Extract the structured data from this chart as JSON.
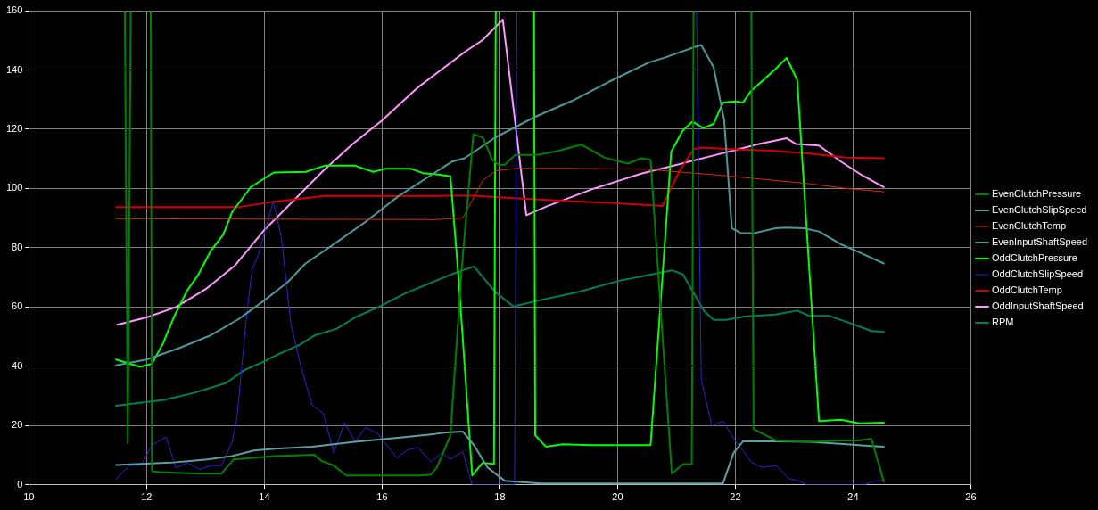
{
  "chart_data": {
    "type": "line",
    "xlim": [
      10,
      26
    ],
    "xticks": [
      10,
      12,
      14,
      16,
      18,
      20,
      22,
      24,
      26
    ],
    "ylim": [
      0,
      160
    ],
    "yticks": [
      0,
      20,
      40,
      60,
      80,
      100,
      120,
      140,
      160
    ],
    "grid": true,
    "legend": "right",
    "marker": "none",
    "line_style": "solid",
    "series": [
      {
        "name": "EvenClutchPressure",
        "color": "#008000",
        "x": [
          11.63,
          11.68,
          11.73,
          11.9,
          12.07,
          12.09,
          12.22,
          12.88,
          13.27,
          13.48,
          14.18,
          14.84,
          14.97,
          15.18,
          15.39,
          16.06,
          16.62,
          16.83,
          16.93,
          17.16,
          17.35,
          17.55,
          17.71,
          17.87,
          17.98,
          18.08,
          18.26,
          18.63,
          18.97,
          19.38,
          19.78,
          20.17,
          20.4,
          20.56,
          20.92,
          21.11,
          21.26,
          21.29,
          21.8,
          22.27,
          22.31,
          22.69,
          23.26,
          23.79,
          24.1,
          24.31,
          24.52
        ],
        "values": [
          160,
          14,
          160,
          null,
          160,
          4.6,
          4.3,
          3.8,
          3.8,
          8.6,
          9.7,
          10.2,
          8.1,
          6.5,
          3.2,
          3.2,
          3.2,
          3.5,
          5.9,
          16.7,
          72.6,
          118.3,
          117.2,
          109.7,
          108,
          108,
          111.3,
          111.3,
          112.6,
          114.8,
          110.4,
          108.4,
          110.2,
          109.7,
          3.8,
          7,
          7,
          160,
          null,
          160,
          18.8,
          15,
          14.5,
          15,
          15,
          15.6,
          1.1
        ]
      },
      {
        "name": "EvenClutchSlipSpeed",
        "color": "#5f9ea0",
        "x": [
          11.48,
          12.41,
          13.03,
          13.45,
          13.82,
          14.18,
          14.81,
          15.54,
          16.38,
          16.9,
          17.09,
          17.37,
          17.56,
          17.79,
          18.08,
          18.7,
          20.01,
          20.79,
          21.79,
          21.97,
          22.13,
          22.68,
          23.26,
          23.89,
          24.31,
          24.52
        ],
        "values": [
          6.7,
          7.5,
          8.6,
          9.7,
          11.6,
          12.2,
          12.9,
          14.5,
          16.1,
          17.2,
          17.7,
          18,
          13.4,
          5.9,
          1.4,
          0.5,
          0.5,
          0.5,
          0.5,
          10.8,
          14.7,
          14.7,
          14.5,
          13.7,
          13.1,
          12.9
        ]
      },
      {
        "name": "EvenClutchTemp",
        "color": "#cc3300",
        "x": [
          11.48,
          16.9,
          17.37,
          17.71,
          17.92,
          18.29,
          19.23,
          20.48,
          21.84,
          22.68,
          23.26,
          23.89,
          24.52
        ],
        "values": [
          89.8,
          89.5,
          90,
          102.7,
          105.9,
          106.8,
          106.8,
          106.5,
          104.3,
          102.7,
          101.6,
          100,
          98.9
        ]
      },
      {
        "name": "EvenInputShaftSpeed",
        "color": "#4f9696",
        "x": [
          11.48,
          12,
          12.56,
          13.09,
          13.56,
          13.97,
          14.39,
          14.7,
          15.18,
          15.75,
          16.27,
          16.9,
          17.19,
          17.4,
          17.92,
          18.6,
          19.23,
          19.85,
          20.53,
          20.79,
          21.32,
          21.42,
          21.63,
          21.81,
          21.94,
          22.1,
          22.31,
          22.68,
          22.85,
          23.16,
          23.42,
          23.79,
          24.1,
          24.52
        ],
        "values": [
          40.3,
          42.3,
          46.2,
          50.5,
          55.9,
          61.8,
          68.3,
          74.7,
          81.2,
          89.2,
          97.3,
          105.4,
          109.1,
          110.2,
          117.2,
          124.2,
          129.6,
          136,
          142.5,
          144.1,
          147.8,
          148.4,
          140.9,
          123.1,
          86.6,
          84.9,
          84.9,
          86.6,
          86.8,
          86.6,
          85.5,
          81.2,
          78.5,
          74.7
        ]
      },
      {
        "name": "OddClutchPressure",
        "color": "#00ff00",
        "x": [
          11.48,
          11.89,
          12.09,
          12.28,
          12.46,
          12.69,
          12.88,
          13.09,
          13.3,
          13.45,
          13.77,
          14.16,
          14.7,
          15.02,
          15.54,
          15.85,
          16.06,
          16.48,
          16.69,
          16.93,
          17.16,
          17.3,
          17.53,
          17.71,
          17.9,
          17.93,
          18.25,
          18.58,
          18.6,
          18.78,
          19.07,
          19.54,
          20,
          20.56,
          20.91,
          21.1,
          21.27,
          21.45,
          21.63,
          21.79,
          22,
          22.13,
          22.26,
          22.68,
          22.87,
          23.05,
          23.42,
          23.79,
          24.1,
          24.52
        ],
        "values": [
          42.3,
          39.8,
          40.9,
          47.8,
          56.5,
          65.6,
          71,
          79,
          84.4,
          92,
          100.5,
          105.4,
          105.6,
          107.7,
          107.7,
          105.6,
          106.7,
          106.7,
          105.2,
          104.8,
          104.1,
          69.4,
          3.2,
          7.5,
          7,
          160,
          null,
          160,
          16.7,
          12.9,
          13.7,
          13.4,
          13.4,
          13.4,
          112.4,
          119.4,
          122.6,
          120.4,
          121.8,
          129,
          129.4,
          129,
          132.8,
          140.3,
          144.1,
          136.6,
          21.5,
          22,
          20.8,
          21
        ]
      },
      {
        "name": "OddClutchSlipSpeed",
        "color": "#3322cc",
        "x": [
          11.48,
          11.7,
          11.91,
          12.09,
          12.33,
          12.5,
          12.69,
          12.9,
          13.09,
          13.27,
          13.45,
          13.53,
          13.69,
          13.79,
          13.9,
          14.15,
          14.29,
          14.45,
          14.63,
          14.81,
          15,
          15.18,
          15.36,
          15.54,
          15.72,
          15.93,
          16.25,
          16.43,
          16.61,
          16.83,
          17.01,
          17.16,
          17.37,
          17.53,
          18.25,
          18.29,
          20,
          21.34,
          21.42,
          21.6,
          21.79,
          21.99,
          22.28,
          22.46,
          22.69,
          22.9,
          23.11,
          23.21,
          24.2,
          24.31,
          24.52
        ],
        "values": [
          1.9,
          6.5,
          6.7,
          13.4,
          16.1,
          5.7,
          7.5,
          5.2,
          6.5,
          6.5,
          14.5,
          22,
          55.4,
          72.6,
          77.8,
          95.7,
          83.3,
          54.3,
          39.2,
          26.9,
          24.2,
          10.8,
          21,
          14.5,
          19.4,
          17.2,
          9.1,
          11.8,
          12.6,
          7.8,
          10.8,
          8.6,
          11.3,
          0,
          0,
          160,
          null,
          160,
          35.5,
          19.9,
          21.5,
          15.1,
          7.5,
          5.9,
          6.5,
          2.2,
          1.1,
          0,
          0,
          1.1,
          1.6
        ]
      },
      {
        "name": "OddClutchTemp",
        "color": "#cc0000",
        "x": [
          11.48,
          13.56,
          14.13,
          15.02,
          16.9,
          17.56,
          18.18,
          19.23,
          20.01,
          20.76,
          21.05,
          21.29,
          21.42,
          21.84,
          22.68,
          23.26,
          23.89,
          24.52
        ],
        "values": [
          93.7,
          93.7,
          95.5,
          97.5,
          97.5,
          97.6,
          96.8,
          95.7,
          95,
          94.1,
          105.9,
          113.2,
          113.8,
          113.4,
          112.7,
          111.8,
          110.4,
          110.2
        ]
      },
      {
        "name": "OddInputShaftSpeed",
        "color": "#ff99ff",
        "x": [
          11.5,
          12,
          12.5,
          13,
          13.5,
          14,
          14.5,
          15,
          15.5,
          16,
          16.6,
          17,
          17.4,
          17.7,
          18.05,
          18.45,
          18.8,
          19.2,
          19.6,
          20,
          20.4,
          20.8,
          21.2,
          21.6,
          22,
          22.4,
          22.87,
          23.03,
          23.42,
          23.8,
          24.15,
          24.52
        ],
        "values": [
          54,
          56.5,
          60,
          66,
          74,
          86,
          96,
          106,
          115,
          123,
          134,
          140,
          146,
          150,
          157,
          91,
          94,
          97,
          100,
          102.5,
          105,
          107,
          109,
          111,
          113,
          115,
          117,
          115,
          114.5,
          109,
          104.5,
          100.5
        ]
      },
      {
        "name": "RPM",
        "color": "#008050",
        "x": [
          11.48,
          12,
          12.3,
          12.83,
          13.35,
          13.66,
          13.97,
          14.24,
          14.6,
          14.86,
          15.23,
          15.54,
          15.96,
          16.38,
          16.9,
          17.24,
          17.56,
          17.92,
          18.23,
          18.7,
          19.33,
          20.01,
          20.69,
          20.92,
          21.11,
          21.47,
          21.63,
          21.84,
          22.15,
          22.68,
          23.05,
          23.26,
          23.6,
          23.99,
          24.31,
          24.52
        ],
        "values": [
          26.7,
          28,
          28.7,
          31.2,
          34.4,
          38.7,
          41.4,
          44.1,
          47.3,
          50.5,
          52.7,
          56.5,
          60.2,
          64.5,
          68.8,
          71.5,
          73.7,
          65.1,
          60.2,
          62.4,
          65.1,
          68.8,
          71.5,
          72.4,
          71,
          58.6,
          55.7,
          55.7,
          56.8,
          57.5,
          58.8,
          57,
          57,
          54.3,
          51.9,
          51.6
        ]
      }
    ]
  }
}
